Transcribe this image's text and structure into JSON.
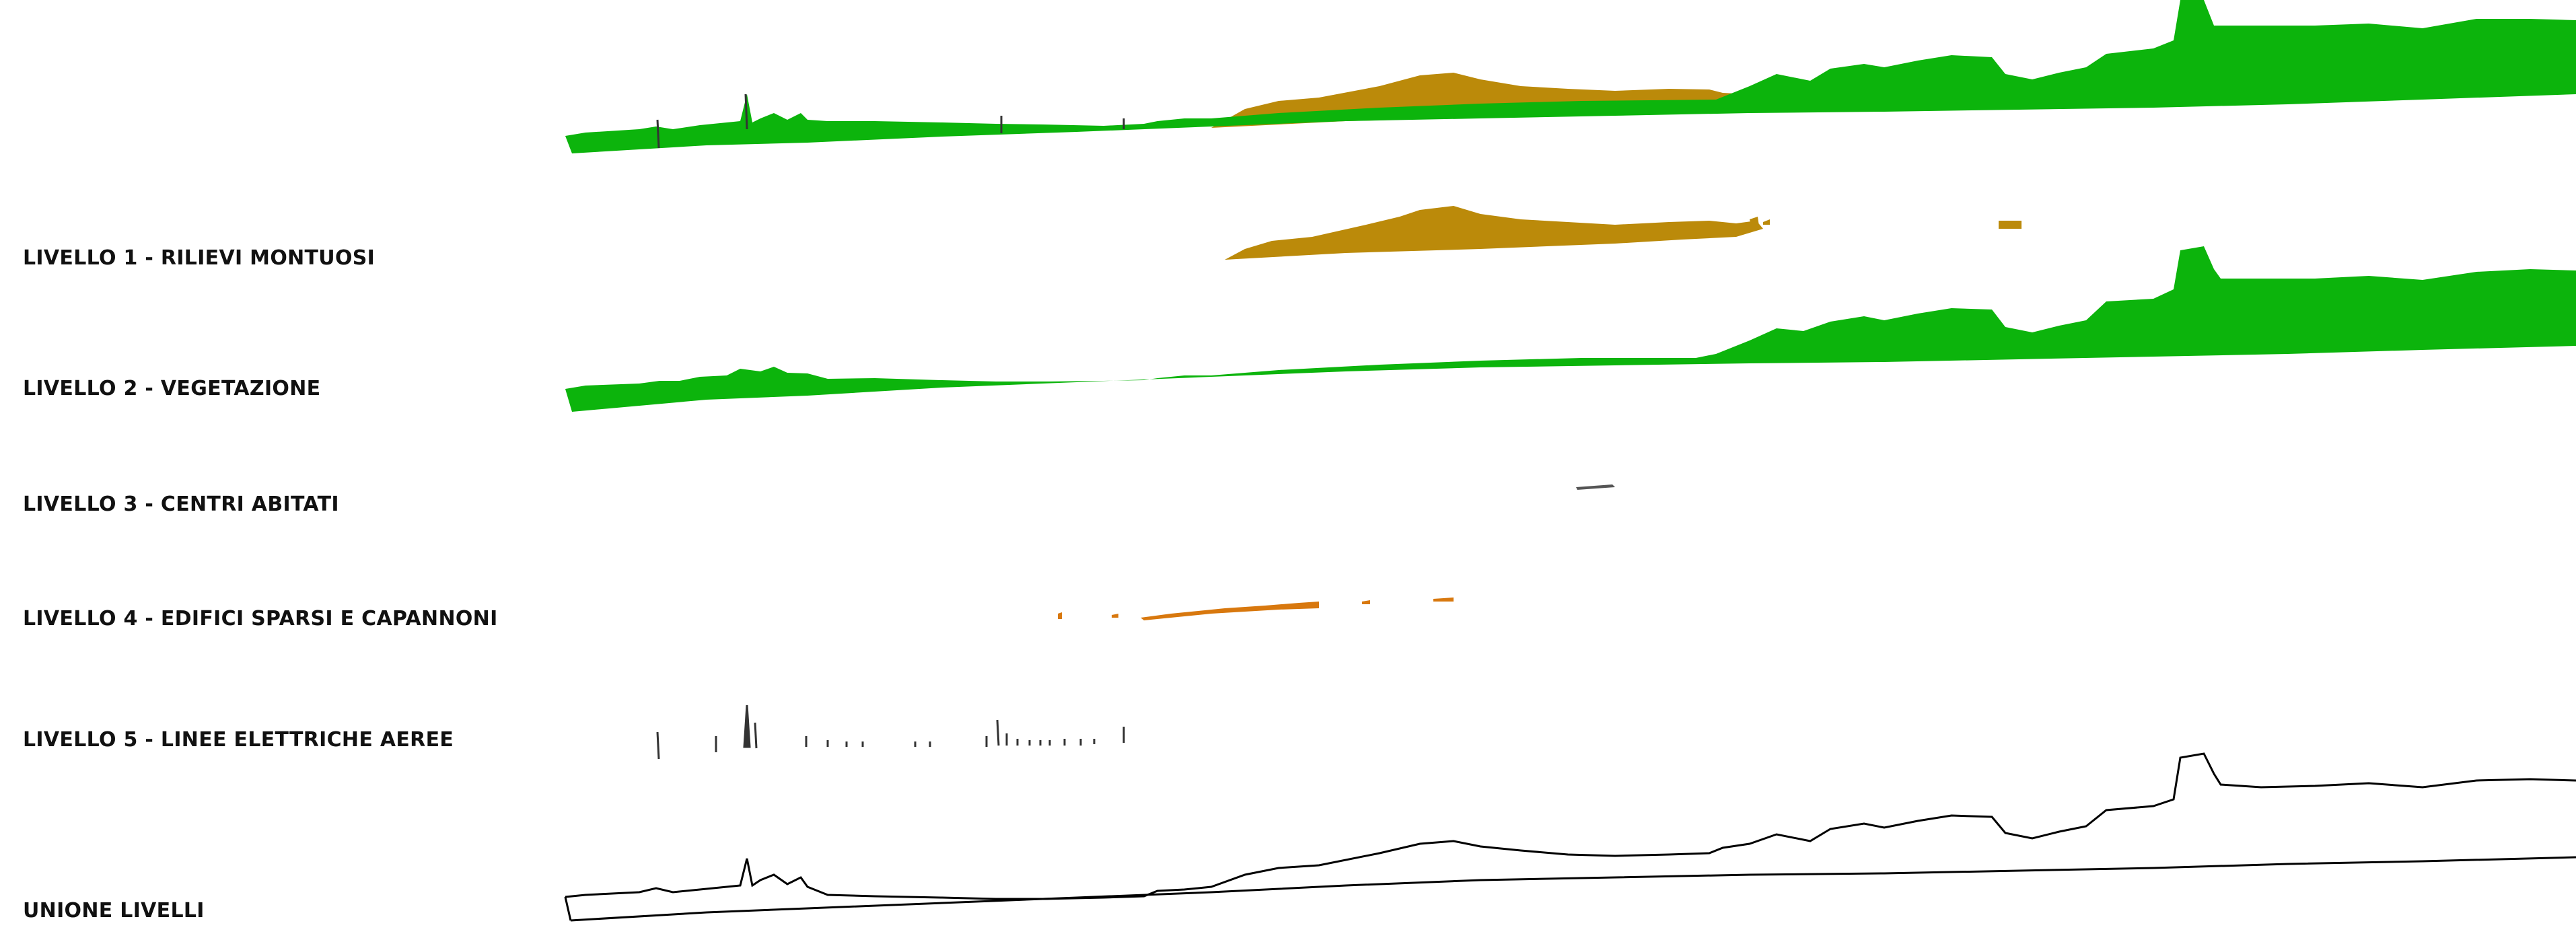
{
  "layers": [
    {
      "label": "LIVELLO 1 - RILIEVI MONTUOSI"
    },
    {
      "label": "LIVELLO 2 - VEGETAZIONE"
    },
    {
      "label": "LIVELLO 3 - CENTRI ABITATI"
    },
    {
      "label": "LIVELLO 4 - EDIFICI SPARSI E CAPANNONI"
    },
    {
      "label": "LIVELLO 5 - LINEE ELETTRICHE AEREE"
    }
  ],
  "union_label": "UNIONE LIVELLI",
  "colors": {
    "mountains": "#bb8a0a",
    "vegetation": "#0cb40c",
    "settlements": "#555555",
    "buildings": "#d8780e",
    "power_lines": "#333333",
    "union_outline": "#000000"
  }
}
